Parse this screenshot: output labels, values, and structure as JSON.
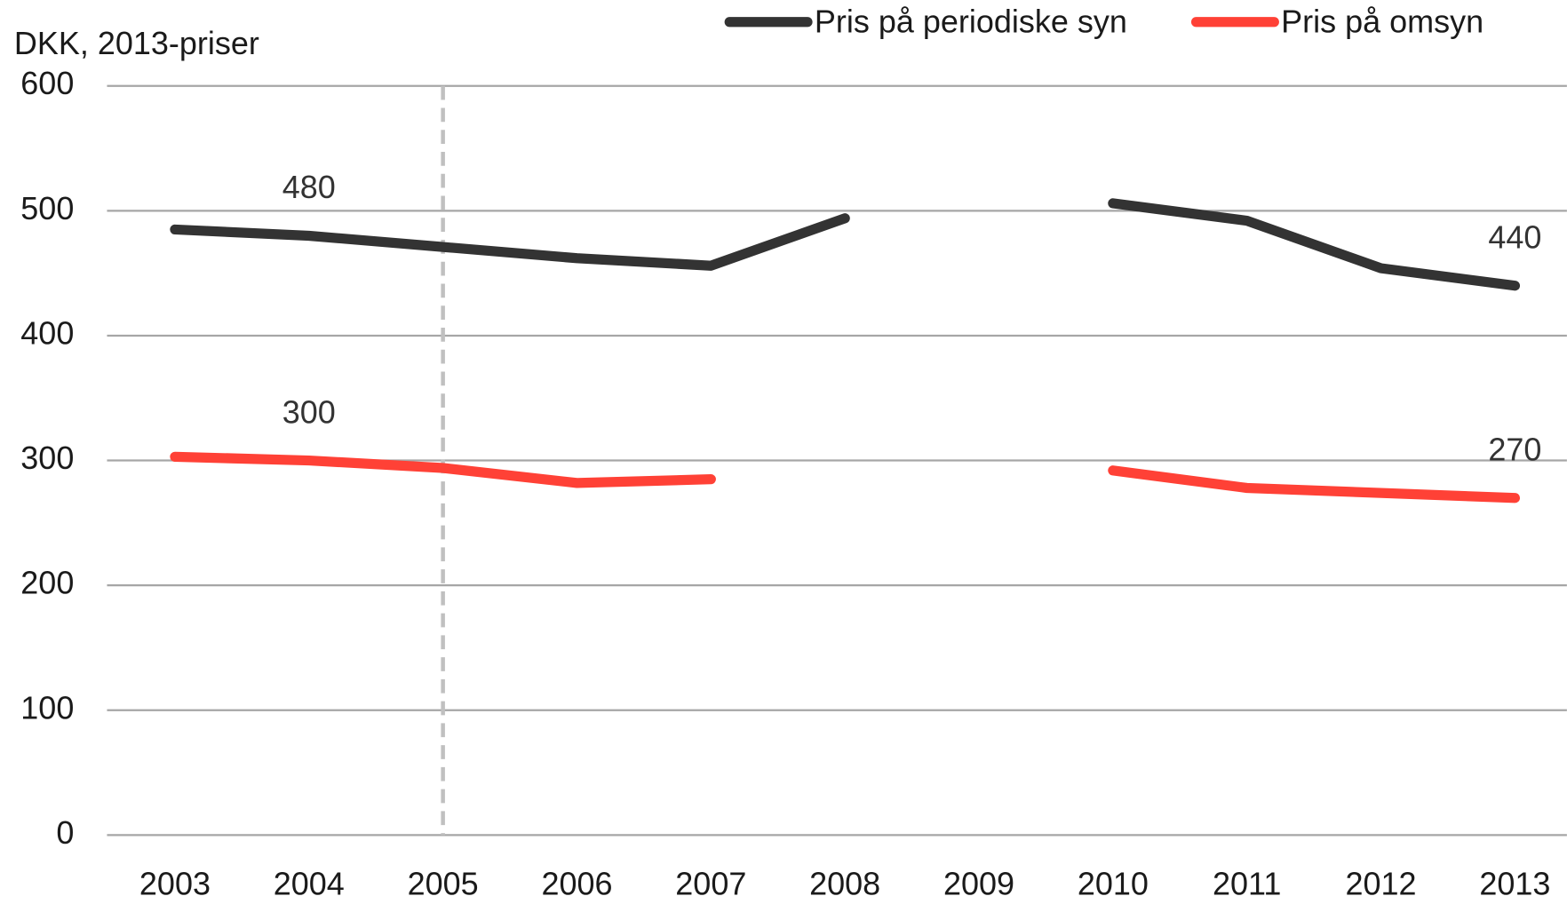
{
  "chart_data": {
    "type": "line",
    "y_axis_label": "DKK, 2013-priser",
    "categories": [
      "2003",
      "2004",
      "2005",
      "2006",
      "2007",
      "2008",
      "2009",
      "2010",
      "2011",
      "2012",
      "2013"
    ],
    "series": [
      {
        "name": "Pris på periodiske syn",
        "color": "#333333",
        "values": [
          485,
          480,
          471,
          462,
          456,
          494,
          null,
          506,
          492,
          454,
          440
        ],
        "value_labels": [
          null,
          "480",
          null,
          null,
          null,
          null,
          null,
          null,
          null,
          null,
          "440"
        ]
      },
      {
        "name": "Pris på omsyn",
        "color": "#ff4136",
        "values": [
          303,
          300,
          294,
          282,
          285,
          null,
          null,
          292,
          278,
          274,
          270
        ],
        "value_labels": [
          null,
          "300",
          null,
          null,
          null,
          null,
          null,
          null,
          null,
          null,
          "270"
        ]
      }
    ],
    "ylim": [
      0,
      600
    ],
    "yticks": [
      0,
      100,
      200,
      300,
      400,
      500,
      600
    ],
    "grid": true,
    "legend": "top-right",
    "reference_line": {
      "category_index": 2,
      "color": "#c0c0c0",
      "dashed": true
    }
  }
}
